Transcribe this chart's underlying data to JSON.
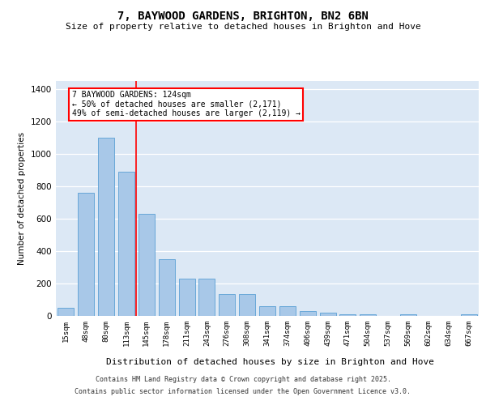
{
  "title": "7, BAYWOOD GARDENS, BRIGHTON, BN2 6BN",
  "subtitle": "Size of property relative to detached houses in Brighton and Hove",
  "xlabel": "Distribution of detached houses by size in Brighton and Hove",
  "ylabel": "Number of detached properties",
  "categories": [
    "15sqm",
    "48sqm",
    "80sqm",
    "113sqm",
    "145sqm",
    "178sqm",
    "211sqm",
    "243sqm",
    "276sqm",
    "308sqm",
    "341sqm",
    "374sqm",
    "406sqm",
    "439sqm",
    "471sqm",
    "504sqm",
    "537sqm",
    "569sqm",
    "602sqm",
    "634sqm",
    "667sqm"
  ],
  "values": [
    48,
    760,
    1100,
    890,
    630,
    350,
    230,
    230,
    135,
    135,
    62,
    62,
    30,
    20,
    12,
    10,
    0,
    10,
    0,
    0,
    10
  ],
  "bar_color": "#a8c8e8",
  "bar_edge_color": "#5a9fd4",
  "vline_color": "red",
  "annotation_text": "7 BAYWOOD GARDENS: 124sqm\n← 50% of detached houses are smaller (2,171)\n49% of semi-detached houses are larger (2,119) →",
  "annotation_box_color": "white",
  "annotation_box_edge_color": "red",
  "ylim": [
    0,
    1450
  ],
  "yticks": [
    0,
    200,
    400,
    600,
    800,
    1000,
    1200,
    1400
  ],
  "background_color": "#dce8f5",
  "footer_line1": "Contains HM Land Registry data © Crown copyright and database right 2025.",
  "footer_line2": "Contains public sector information licensed under the Open Government Licence v3.0."
}
